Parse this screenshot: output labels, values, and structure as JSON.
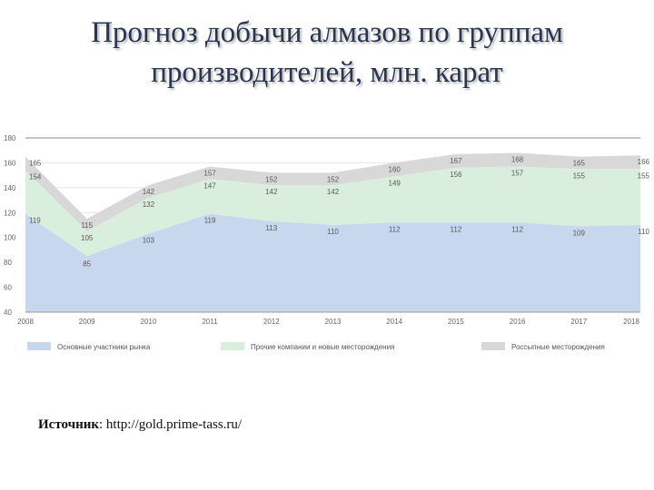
{
  "title": {
    "line1": "Прогноз добычи алмазов по группам",
    "line2": "производителей, млн. карат"
  },
  "source": {
    "label": "Источник",
    "text": ": http://gold.prime-tass.ru/"
  },
  "colors": {
    "main": "#c6d7ee",
    "other": "#d9eedc",
    "alluvial": "#d8d8d8",
    "grid": "#e6e6e6",
    "axis": "#999999",
    "top_rule": "#8a8a8a"
  },
  "chart_data": {
    "type": "area",
    "stacked": true,
    "x": [
      "2008",
      "2009",
      "2010",
      "2011",
      "2012",
      "2013",
      "2014",
      "2015",
      "2016",
      "2017",
      "2018"
    ],
    "ylim": [
      40,
      180
    ],
    "yticks": [
      40,
      60,
      80,
      100,
      120,
      140,
      160,
      180
    ],
    "grid": true,
    "legend_position": "bottom",
    "series": [
      {
        "name": "Основные участники рынка",
        "values": [
          119,
          85,
          103,
          119,
          113,
          110,
          112,
          112,
          112,
          109,
          110
        ],
        "labels": [
          "119",
          "85",
          "103",
          "119",
          "113",
          "110",
          "112",
          "112",
          "112",
          "109",
          "110"
        ]
      },
      {
        "name": "Прочие компании и новые месторождения",
        "cumulative": [
          154,
          105,
          132,
          147,
          142,
          142,
          149,
          156,
          157,
          155,
          155
        ],
        "labels": [
          "154",
          "105",
          "132",
          "147",
          "142",
          "142",
          "149",
          "156",
          "157",
          "155",
          "155"
        ]
      },
      {
        "name": "Россыпные месторождения",
        "cumulative": [
          165,
          115,
          142,
          157,
          152,
          152,
          160,
          167,
          168,
          165,
          166
        ],
        "labels": [
          "165",
          "115",
          "142",
          "157",
          "152",
          "152",
          "160",
          "167",
          "168",
          "165",
          "166"
        ]
      }
    ]
  }
}
